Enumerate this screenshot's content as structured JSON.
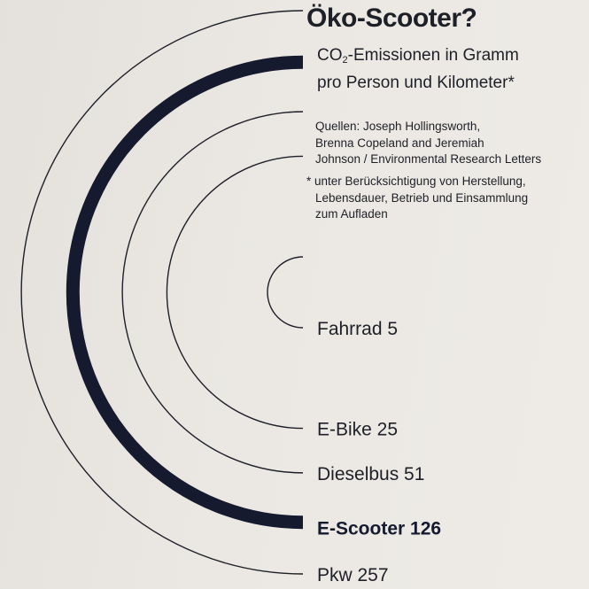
{
  "title": "Öko-Scooter?",
  "subtitle": {
    "line1_prefix": "CO",
    "line1_subscript": "2",
    "line1_suffix": "-Emissionen in Gramm",
    "line2": "pro Person und Kilometer*"
  },
  "sources": {
    "line1": "Quellen: Joseph Hollingsworth,",
    "line2": "Brenna Copeland and Jeremiah",
    "line3": "Johnson / Environmental Research Letters"
  },
  "footnote": {
    "line1": "* unter Berücksichtigung von Herstellung,",
    "line2": "Lebensdauer, Betrieb und Einsammlung",
    "line3": "zum Aufladen"
  },
  "colors": {
    "ink": "#1e2028",
    "highlight": "#151a2e",
    "paper": "#e9e6e1"
  },
  "chart_data": {
    "type": "other",
    "title": "Öko-Scooter?",
    "subtitle": "CO2-Emissionen in Gramm pro Person und Kilometer*",
    "unit": "g CO2 pro Person und Kilometer",
    "highlighted": "E-Scooter",
    "categories": [
      "Fahrrad",
      "E-Bike",
      "Dieselbus",
      "E-Scooter",
      "Pkw"
    ],
    "values": [
      5,
      25,
      51,
      126,
      257
    ],
    "items": [
      {
        "name": "Fahrrad",
        "value": 5,
        "highlight": false
      },
      {
        "name": "E-Bike",
        "value": 25,
        "highlight": false
      },
      {
        "name": "Dieselbus",
        "value": 51,
        "highlight": false
      },
      {
        "name": "E-Scooter",
        "value": 126,
        "highlight": true
      },
      {
        "name": "Pkw",
        "value": 257,
        "highlight": false
      }
    ]
  }
}
